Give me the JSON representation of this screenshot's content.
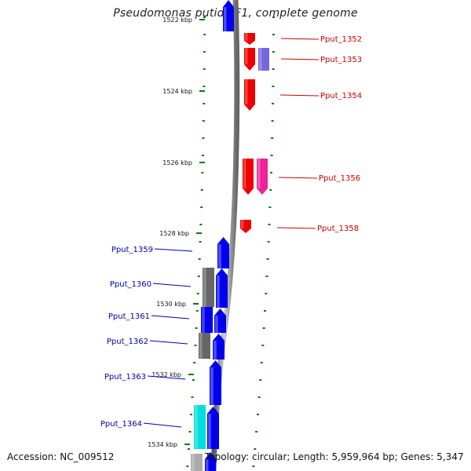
{
  "title": "Pseudomonas putida F1, complete genome",
  "footer": {
    "accession": "Accession: NC_009512",
    "info": "Topology: circular; Length: 5,959,964 bp; Genes: 5,347"
  },
  "colors": {
    "forward": "#0000ee",
    "reverse": "#ee0000",
    "label_forward": "#0000aa",
    "label_reverse": "#cc0000",
    "pink": "#ee2299",
    "lavender": "#7766dd",
    "gray_gene": "#666666",
    "cyan": "#00dddd",
    "scale_dots": "#0a7a0a",
    "backbone": "#888888"
  },
  "scale": {
    "ticks": [
      "1522 kbp",
      "1524 kbp",
      "1526 kbp",
      "1528 kbp",
      "1530 kbp",
      "1532 kbp",
      "1534 kbp"
    ]
  },
  "genes_reverse": [
    "Pput_1352",
    "Pput_1353",
    "Pput_1354",
    "Pput_1356",
    "Pput_1358"
  ],
  "genes_forward": [
    "Pput_1359",
    "Pput_1360",
    "Pput_1361",
    "Pput_1362",
    "Pput_1363",
    "Pput_1364"
  ]
}
